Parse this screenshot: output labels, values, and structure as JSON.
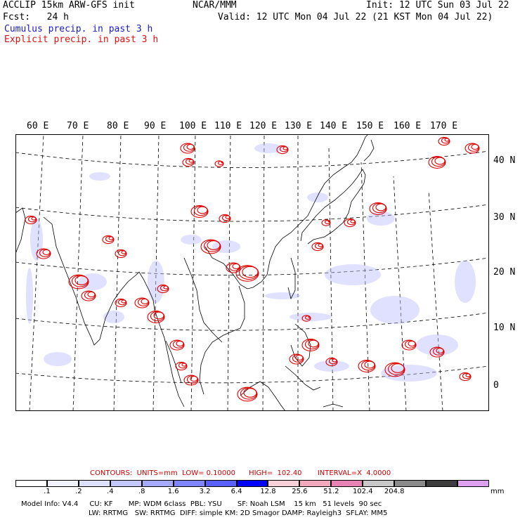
{
  "header": {
    "model_line": "ACCLIP 15km ARW-GFS init",
    "org": "NCAR/MMM",
    "init": "Init: 12 UTC Sun 03 Jul 22",
    "fcst": "Fcst:   24 h",
    "valid": "Valid: 12 UTC Mon 04 Jul 22 (21 KST Mon 04 Jul 22)",
    "cumulus_label": "Cumulus precip. in past 3 h",
    "explicit_label": "Explicit precip. in past 3 h",
    "cumulus_color": "#1a1acc",
    "explicit_color": "#e01010"
  },
  "map": {
    "lon_labels": [
      "60 E",
      "70 E",
      "80 E",
      "90 E",
      "100 E",
      "110 E",
      "120 E",
      "130 E",
      "140 E",
      "150 E",
      "160 E",
      "170 E"
    ],
    "lat_labels": [
      "40 N",
      "30 N",
      "20 N",
      "10 N",
      "0"
    ]
  },
  "contours": {
    "label": "CONTOURS:",
    "units": "UNITS=mm",
    "low": "LOW= 0.10000",
    "high": "HIGH=  102.40",
    "interval": "INTERVAL=X  4.0000",
    "color": "#cc0000"
  },
  "colorbar": {
    "colors": [
      "#ffffff",
      "#f2f2ff",
      "#dde0ff",
      "#c4c8ff",
      "#a6aaff",
      "#7f84ff",
      "#5a5fff",
      "#0000ff",
      "#f7d0d8",
      "#f2a8bd",
      "#e882b5",
      "#c8c8c8",
      "#8a8a8a",
      "#3c3c3c",
      "#dda0f0"
    ],
    "ticks": [
      ".1",
      ".2",
      ".4",
      ".8",
      "1.6",
      "3.2",
      "6.4",
      "12.8",
      "25.6",
      "51.2",
      "102.4",
      "204.8"
    ],
    "unit": "mm"
  },
  "footer": {
    "line1": "Model Info: V4.4     CU: KF       MP: WDM 6class  PBL: YSU       SF: Noah LSM    15 km   51 levels  90 sec",
    "line2": "LW: RRTMG   SW: RRTMG  DIFF: simple KM: 2D Smagor DAMP: Rayleigh3  SFLAY: MM5"
  }
}
